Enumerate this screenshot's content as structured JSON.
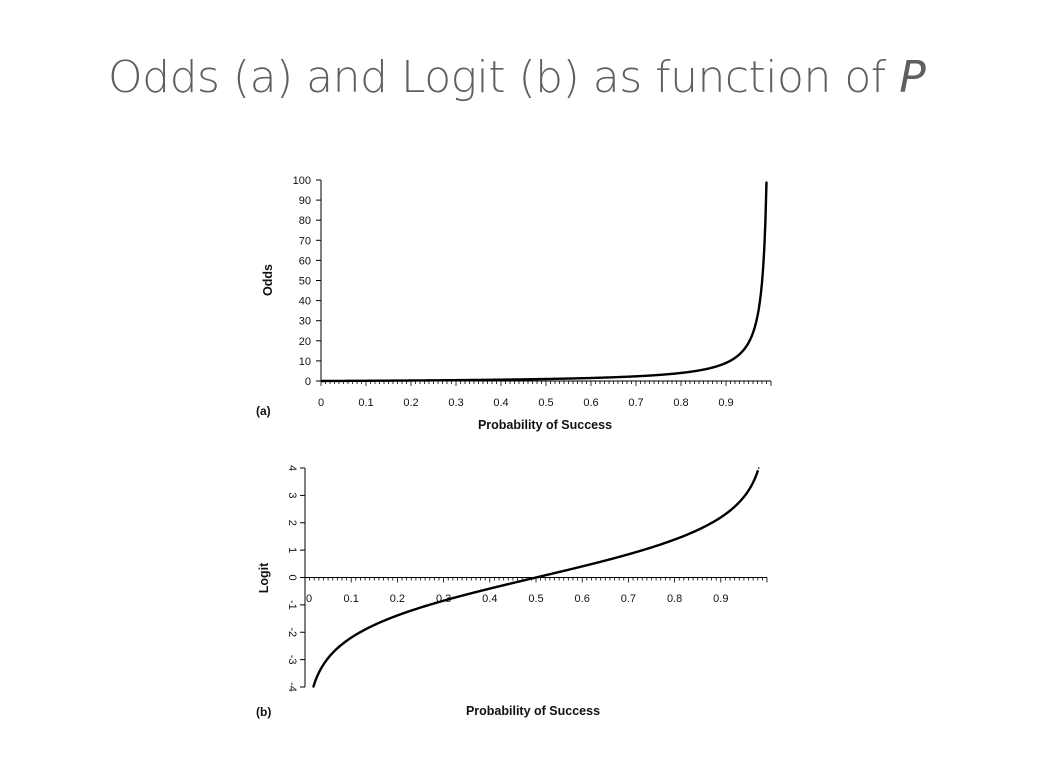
{
  "slide": {
    "title_main": "Odds (a) and Logit (b) as function of ",
    "title_var": "P"
  },
  "chart_data": [
    {
      "type": "line",
      "panel_label": "(a)",
      "xlabel": "Probability of Success",
      "ylabel": "Odds",
      "xlim": [
        0,
        1
      ],
      "ylim": [
        0,
        100
      ],
      "xticks": [
        "0",
        "0.1",
        "0.2",
        "0.3",
        "0.4",
        "0.5",
        "0.6",
        "0.7",
        "0.8",
        "0.9"
      ],
      "yticks": [
        "0",
        "10",
        "20",
        "30",
        "40",
        "50",
        "60",
        "70",
        "80",
        "90",
        "100"
      ],
      "x": [
        0.01,
        0.05,
        0.1,
        0.2,
        0.3,
        0.4,
        0.5,
        0.6,
        0.7,
        0.8,
        0.85,
        0.9,
        0.93,
        0.95,
        0.96,
        0.97,
        0.98,
        0.985,
        0.99
      ],
      "y": [
        0.0101,
        0.0526,
        0.111,
        0.25,
        0.429,
        0.667,
        1,
        1.5,
        2.33,
        4,
        5.67,
        9,
        13.3,
        19,
        24,
        32.3,
        49,
        65.7,
        99
      ],
      "grid": false,
      "line_color": "#000000"
    },
    {
      "type": "line",
      "panel_label": "(b)",
      "xlabel": "Probability of Success",
      "ylabel": "Logit",
      "xlim": [
        0,
        1
      ],
      "ylim": [
        -4,
        4
      ],
      "xticks": [
        "0",
        "0.1",
        "0.2",
        "0.3",
        "0.4",
        "0.5",
        "0.6",
        "0.7",
        "0.8",
        "0.9"
      ],
      "yticks": [
        "-4",
        "-3",
        "-2",
        "-1",
        "0",
        "1",
        "2",
        "3",
        "4"
      ],
      "x": [
        0.018,
        0.03,
        0.05,
        0.1,
        0.15,
        0.2,
        0.25,
        0.3,
        0.35,
        0.4,
        0.45,
        0.5,
        0.55,
        0.6,
        0.65,
        0.7,
        0.75,
        0.8,
        0.85,
        0.9,
        0.95,
        0.97,
        0.982
      ],
      "y": [
        -3.999,
        -3.476,
        -2.944,
        -2.197,
        -1.735,
        -1.386,
        -1.099,
        -0.847,
        -0.619,
        -0.405,
        -0.201,
        0,
        0.201,
        0.405,
        0.619,
        0.847,
        1.099,
        1.386,
        1.735,
        2.197,
        2.944,
        3.476,
        3.999
      ],
      "grid": false,
      "line_color": "#000000"
    }
  ]
}
